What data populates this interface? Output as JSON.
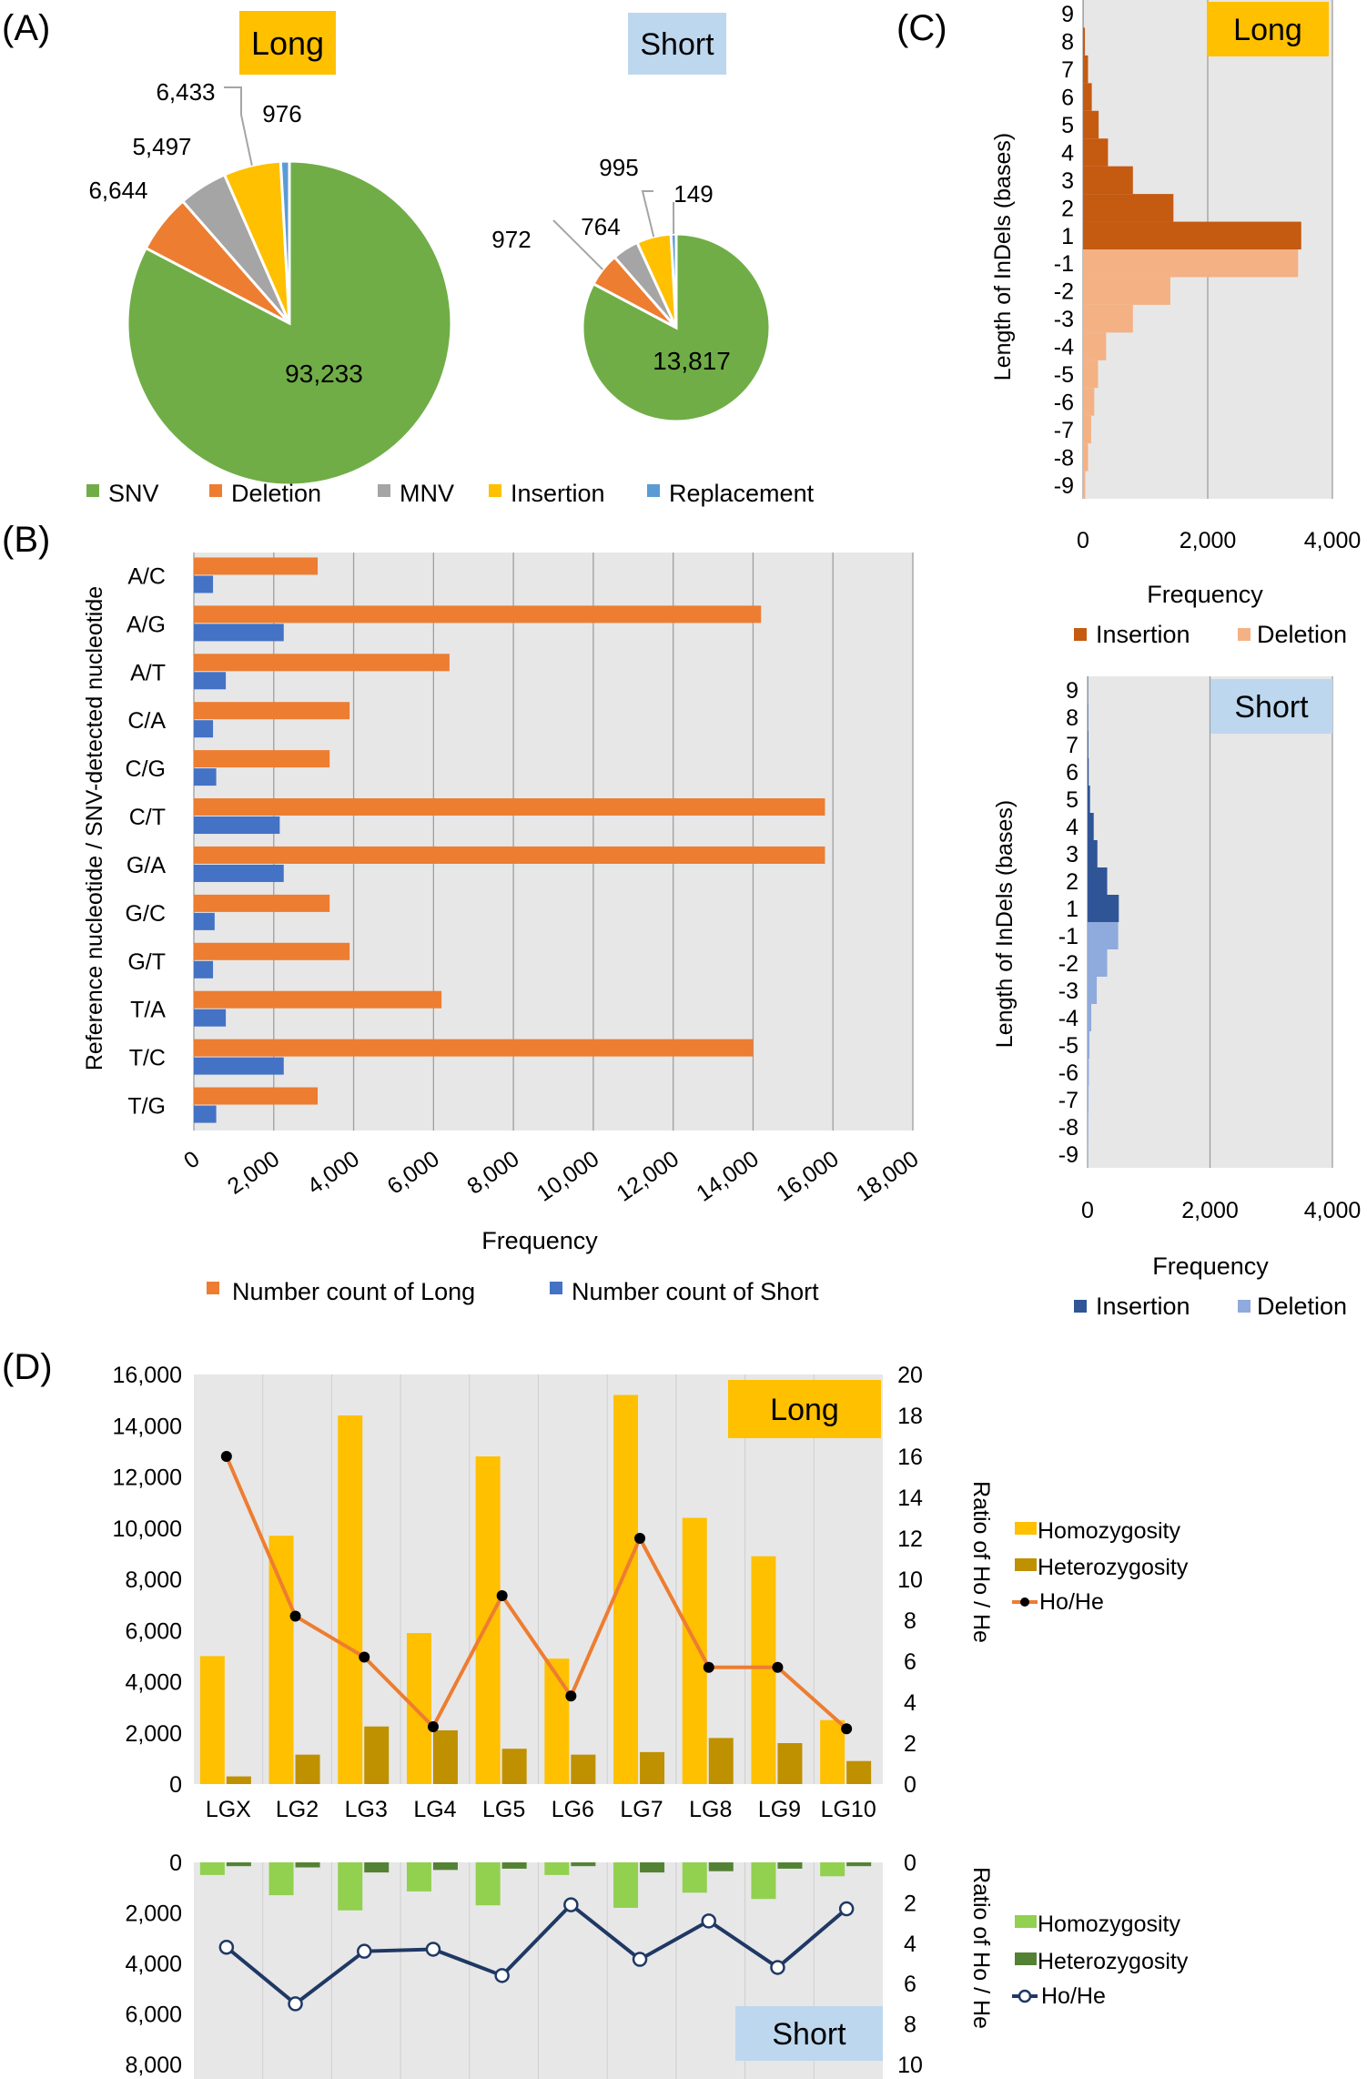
{
  "panel_labels": [
    "(A)",
    "(B)",
    "(C)",
    "(D)"
  ],
  "colors": {
    "snv": "#70AD47",
    "deletion": "#ED7D31",
    "mnv": "#A5A5A5",
    "insertion": "#FFC000",
    "replacement": "#5B9BD5",
    "long_bar": "#ED7D31",
    "short_bar": "#4472C4",
    "ins_long": "#C55A11",
    "del_long": "#F4B183",
    "ins_short": "#2F5597",
    "del_short": "#8FAADC",
    "homo_long": "#FFC000",
    "hetero_long": "#BF9000",
    "ratio_long": "#ED7D31",
    "homo_short": "#92D050",
    "hetero_short": "#548235",
    "ratio_short": "#1F3864",
    "plot_bg": "#E7E7E7",
    "grid": "#9E9E9E",
    "tag_long_bg": "#FFC000",
    "tag_short_bg": "#BDD7EE"
  },
  "chart_data": [
    {
      "id": "A",
      "type": "pie",
      "charts": [
        {
          "title": "Long",
          "labels": [
            "SNV",
            "Deletion",
            "MNV",
            "Insertion",
            "Replacement"
          ],
          "values": [
            93233,
            6644,
            5497,
            6433,
            976
          ],
          "value_labels": [
            "93,233",
            "6,644",
            "5,497",
            "6,433",
            "976"
          ]
        },
        {
          "title": "Short",
          "labels": [
            "SNV",
            "Deletion",
            "MNV",
            "Insertion",
            "Replacement"
          ],
          "values": [
            13817,
            972,
            764,
            995,
            149
          ],
          "value_labels": [
            "13,817",
            "972",
            "764",
            "995",
            "149"
          ]
        }
      ],
      "legend": [
        "SNV",
        "Deletion",
        "MNV",
        "Insertion",
        "Replacement"
      ]
    },
    {
      "id": "B",
      "type": "bar",
      "orientation": "horizontal",
      "categories": [
        "A/C",
        "A/G",
        "A/T",
        "C/A",
        "C/G",
        "C/T",
        "G/A",
        "G/C",
        "G/T",
        "T/A",
        "T/C",
        "T/G"
      ],
      "series": [
        {
          "name": "Number count of Long",
          "values": [
            3100,
            14200,
            6400,
            3900,
            3400,
            15800,
            15800,
            3400,
            3900,
            6200,
            14000,
            3100
          ]
        },
        {
          "name": "Number count of Short",
          "values": [
            480,
            2250,
            800,
            480,
            560,
            2150,
            2250,
            520,
            480,
            800,
            2250,
            560
          ]
        }
      ],
      "xlim": [
        0,
        18000
      ],
      "xticks": [
        "0",
        "2,000",
        "4,000",
        "6,000",
        "8,000",
        "10,000",
        "12,000",
        "14,000",
        "16,000",
        "18,000"
      ],
      "xlabel": "Frequency",
      "ylabel": "Reference nucleotide / SNV-detected nucleotide"
    },
    {
      "id": "C",
      "type": "bar",
      "orientation": "horizontal",
      "charts": [
        {
          "title": "Long",
          "categories": [
            "9",
            "8",
            "7",
            "6",
            "5",
            "4",
            "3",
            "2",
            "1",
            "-1",
            "-2",
            "-3",
            "-4",
            "-5",
            "-6",
            "-7",
            "-8",
            "-9"
          ],
          "values": [
            5,
            30,
            80,
            140,
            250,
            400,
            800,
            1450,
            3500,
            3450,
            1400,
            800,
            370,
            240,
            180,
            130,
            80,
            35
          ],
          "series_names": [
            "Insertion",
            "Deletion"
          ],
          "xlim": [
            0,
            4000
          ],
          "xticks": [
            "0",
            "2,000",
            "4,000"
          ]
        },
        {
          "title": "Short",
          "categories": [
            "9",
            "8",
            "7",
            "6",
            "5",
            "4",
            "3",
            "2",
            "1",
            "-1",
            "-2",
            "-3",
            "-4",
            "-5",
            "-6",
            "-7",
            "-8",
            "-9"
          ],
          "values": [
            5,
            8,
            12,
            18,
            40,
            100,
            160,
            320,
            510,
            500,
            320,
            150,
            60,
            30,
            20,
            15,
            10,
            5
          ],
          "series_names": [
            "Insertion",
            "Deletion"
          ],
          "xlim": [
            0,
            4000
          ],
          "xticks": [
            "0",
            "2,000",
            "4,000"
          ]
        }
      ],
      "xlabel": "Frequency",
      "ylabel": "Length of InDels (bases)"
    },
    {
      "id": "D",
      "type": "bar",
      "categories": [
        "LGX",
        "LG2",
        "LG3",
        "LG4",
        "LG5",
        "LG6",
        "LG7",
        "LG8",
        "LG9",
        "LG10"
      ],
      "long": {
        "title": "Long",
        "series": [
          {
            "name": "Homozygosity",
            "values": [
              5000,
              9700,
              14400,
              5900,
              12800,
              4900,
              15200,
              10400,
              8900,
              2500
            ]
          },
          {
            "name": "Heterozygosity",
            "values": [
              300,
              1150,
              2250,
              2100,
              1380,
              1150,
              1250,
              1800,
              1600,
              900
            ]
          },
          {
            "name": "Ho/He",
            "values": [
              16.0,
              8.2,
              6.2,
              2.8,
              9.2,
              4.3,
              12.0,
              5.7,
              5.7,
              2.7
            ]
          }
        ],
        "ylim": [
          0,
          16000
        ],
        "ylim2": [
          0,
          20
        ],
        "yticks": [
          "0",
          "2,000",
          "4,000",
          "6,000",
          "8,000",
          "10,000",
          "12,000",
          "14,000",
          "16,000"
        ],
        "y2ticks": [
          "0",
          "2",
          "4",
          "6",
          "8",
          "10",
          "12",
          "14",
          "16",
          "18",
          "20"
        ],
        "y2label": "Ratio of Ho / He"
      },
      "short": {
        "title": "Short",
        "series": [
          {
            "name": "Homozygosity",
            "values": [
              500,
              1300,
              1900,
              1150,
              1700,
              500,
              1800,
              1200,
              1450,
              550
            ]
          },
          {
            "name": "Heterozygosity",
            "values": [
              150,
              200,
              400,
              300,
              250,
              150,
              400,
              350,
              250,
              150
            ]
          },
          {
            "name": "Ho/He",
            "values": [
              4.2,
              7.0,
              4.4,
              4.3,
              5.6,
              2.1,
              4.8,
              2.9,
              5.2,
              2.3
            ]
          }
        ],
        "ylim": [
          0,
          8000
        ],
        "ylim2": [
          0,
          10
        ],
        "yticks": [
          "0",
          "2,000",
          "4,000",
          "6,000",
          "8,000"
        ],
        "y2ticks": [
          "0",
          "2",
          "4",
          "6",
          "8",
          "10"
        ],
        "y2label": "Ratio of Ho / He"
      }
    }
  ]
}
